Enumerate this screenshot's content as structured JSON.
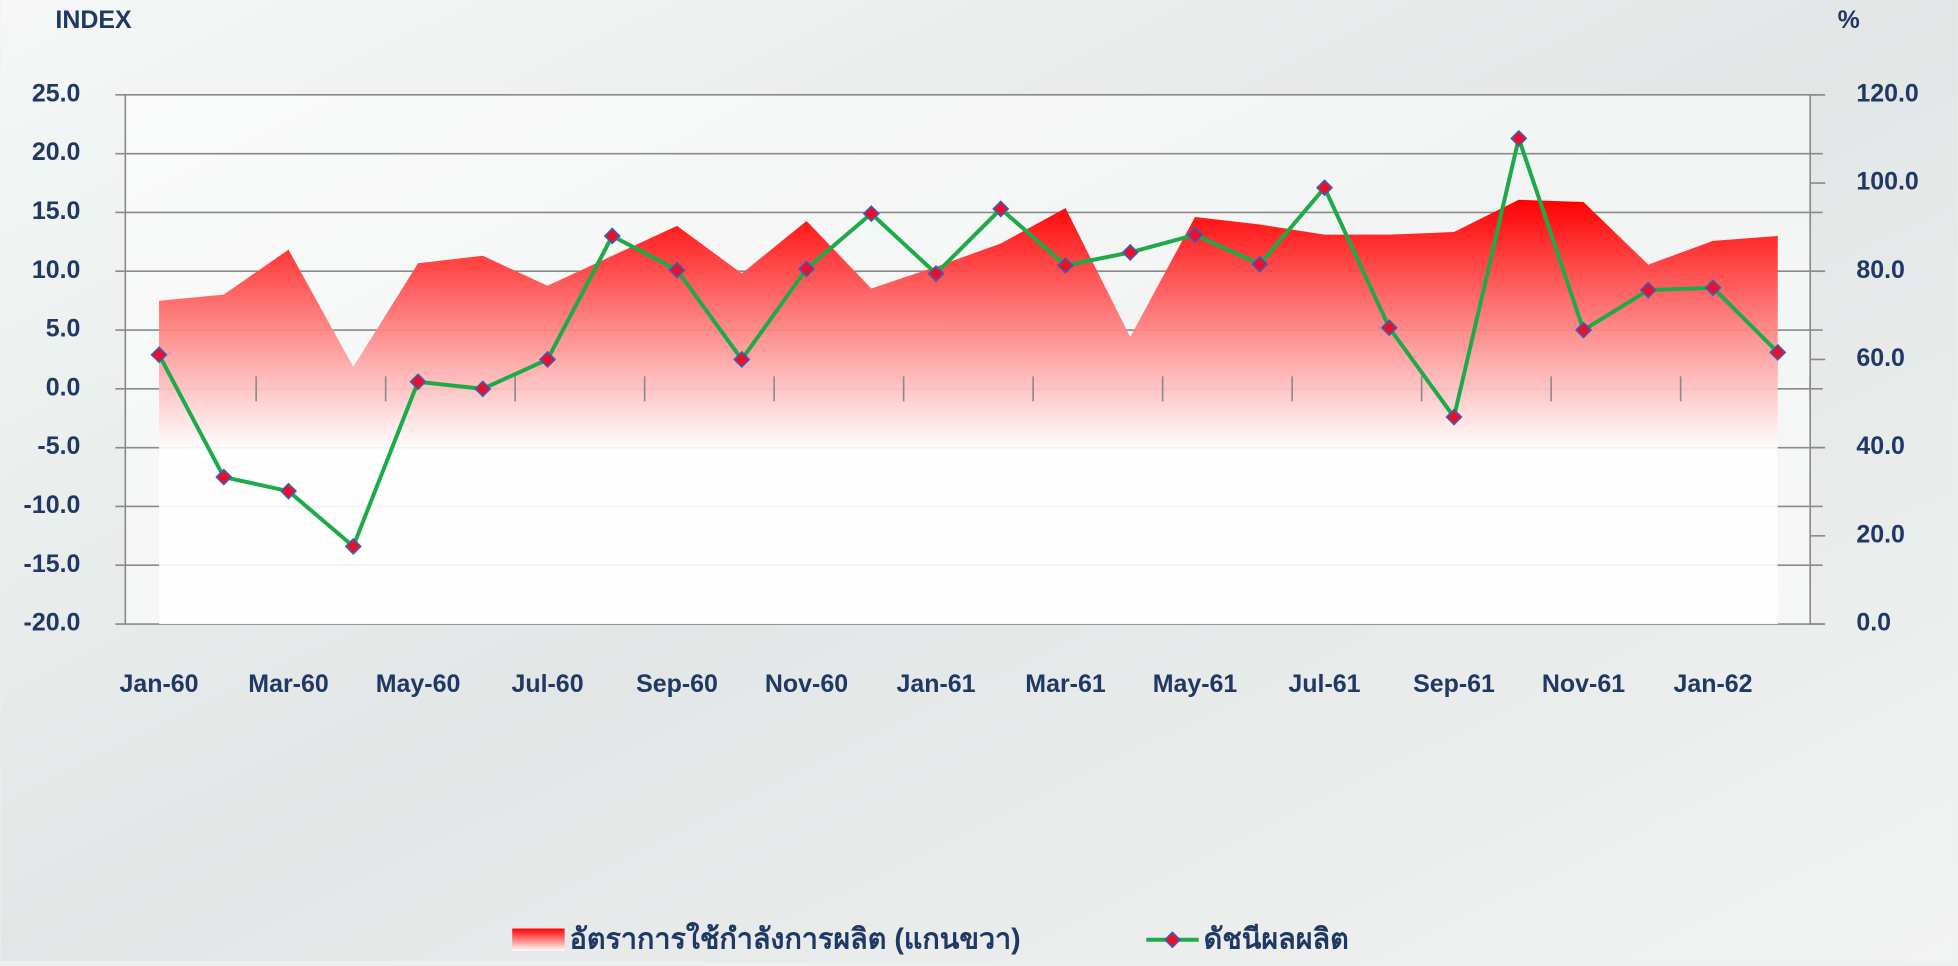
{
  "chart_data": {
    "type": "combo",
    "y_label": "INDEX",
    "y2_label": "%",
    "categories": [
      "Jan-60",
      null,
      "Mar-60",
      null,
      "May-60",
      null,
      "Jul-60",
      null,
      "Sep-60",
      null,
      "Nov-60",
      null,
      "Jan-61",
      null,
      "Mar-61",
      null,
      "May-61",
      null,
      "Jul-61",
      null,
      "Sep-61",
      null,
      "Nov-61",
      null,
      "Jan-62",
      null
    ],
    "series": [
      {
        "name": "อัตราการใช้กำลังการผลิต (แกนขวา)",
        "type": "area",
        "axis": "y2",
        "color": "#ff0000",
        "values": [
          73.3,
          74.7,
          84.9,
          58.3,
          81.8,
          83.5,
          76.7,
          83.5,
          90.3,
          79.5,
          91.4,
          76.1,
          81.0,
          86.3,
          94.3,
          65.1,
          92.3,
          90.6,
          88.3,
          88.3,
          88.9,
          96.2,
          95.7,
          81.5,
          86.9,
          88.0
        ]
      },
      {
        "name": "ดัชนีผลผลิต",
        "type": "line",
        "color": "#1faa4a",
        "marker_color": "#e8112d",
        "values": [
          2.9,
          -7.5,
          -8.7,
          -13.4,
          0.6,
          0.0,
          2.5,
          13.0,
          10.1,
          2.5,
          10.2,
          14.9,
          9.8,
          15.3,
          10.5,
          11.6,
          13.1,
          10.6,
          17.1,
          5.2,
          -2.4,
          21.3,
          5.0,
          8.4,
          8.6,
          3.1
        ]
      }
    ],
    "ylim": [
      -20,
      25
    ],
    "yticks": [
      {
        "value": -20,
        "label": "-20.0"
      },
      {
        "value": -15,
        "label": "-15.0"
      },
      {
        "value": -10,
        "label": "-10.0"
      },
      {
        "value": -5,
        "label": "-5.0"
      },
      {
        "value": 0,
        "label": "0.0"
      },
      {
        "value": 5,
        "label": "5.0"
      },
      {
        "value": 10,
        "label": "10.0"
      },
      {
        "value": 15,
        "label": "15.0"
      },
      {
        "value": 20,
        "label": "20.0"
      },
      {
        "value": 25,
        "label": "25.0"
      }
    ],
    "y2lim": [
      0,
      120
    ],
    "y2ticks": [
      {
        "value": 0,
        "label": "0.0"
      },
      {
        "value": 20,
        "label": "20.0"
      },
      {
        "value": 40,
        "label": "40.0"
      },
      {
        "value": 60,
        "label": "60.0"
      },
      {
        "value": 80,
        "label": "80.0"
      },
      {
        "value": 100,
        "label": "100.0"
      },
      {
        "value": 120,
        "label": "120.0"
      }
    ],
    "grid": true
  }
}
